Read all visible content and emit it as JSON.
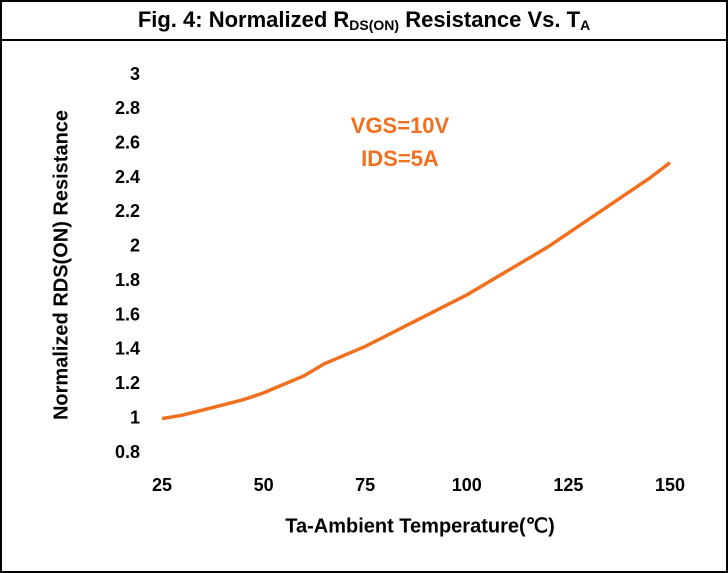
{
  "chart_data": {
    "type": "line",
    "title": [
      "Fig. 4: Normalized R",
      "DS(ON)",
      " Resistance Vs. T",
      "A"
    ],
    "annotations": [
      "VGS=10V",
      "IDS=5A"
    ],
    "x_label": "Ta-Ambient Temperature(℃)",
    "y_label": "Normalized RDS(ON) Resistance",
    "x": [
      25,
      30,
      35,
      40,
      45,
      50,
      55,
      60,
      65,
      70,
      75,
      80,
      85,
      90,
      95,
      100,
      105,
      110,
      115,
      120,
      125,
      130,
      135,
      140,
      145,
      150
    ],
    "series": [
      {
        "name": null,
        "color": "#f07020",
        "values": [
          1.0,
          1.02,
          1.05,
          1.08,
          1.11,
          1.15,
          1.2,
          1.25,
          1.32,
          1.37,
          1.42,
          1.48,
          1.54,
          1.6,
          1.66,
          1.72,
          1.79,
          1.86,
          1.93,
          2.0,
          2.08,
          2.16,
          2.24,
          2.32,
          2.4,
          2.49
        ]
      }
    ],
    "xlim": [
      25,
      150
    ],
    "xticks": [
      25,
      50,
      75,
      100,
      125,
      150
    ],
    "ylim": [
      0.8,
      3
    ],
    "yticks": [
      0.8,
      1,
      1.2,
      1.4,
      1.6,
      1.8,
      2,
      2.2,
      2.4,
      2.6,
      2.8,
      3
    ],
    "grid": false
  }
}
